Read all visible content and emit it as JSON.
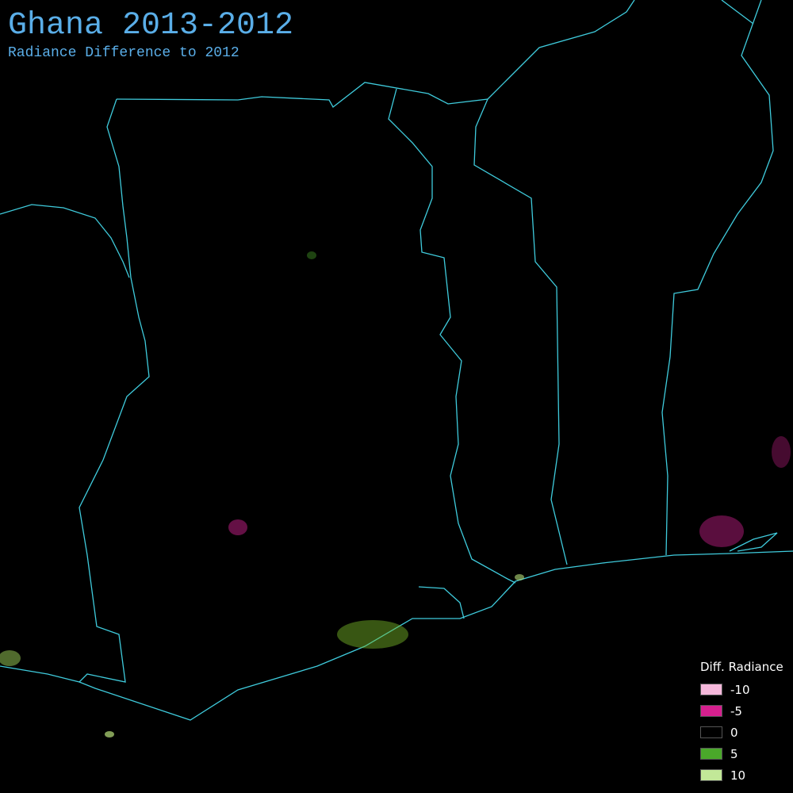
{
  "map": {
    "title": "Ghana 2013-2012",
    "subtitle": "Radiance Difference to 2012",
    "legend": {
      "title": "Diff. Radiance",
      "items": [
        {
          "value": -10,
          "color": "#f5b8db"
        },
        {
          "value": -5,
          "color": "#d6208f"
        },
        {
          "value": 0,
          "color": "#000000"
        },
        {
          "value": 5,
          "color": "#4aa82a"
        },
        {
          "value": 10,
          "color": "#c2e898"
        }
      ]
    }
  }
}
